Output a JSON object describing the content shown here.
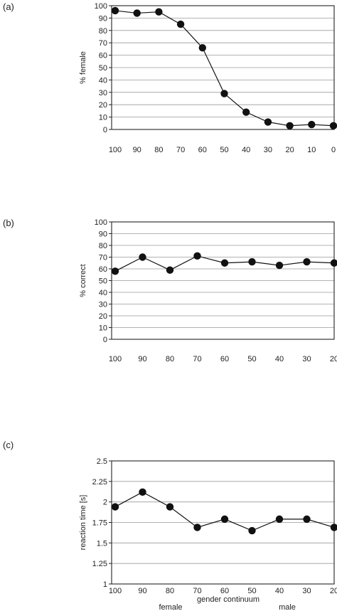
{
  "chart_data": [
    {
      "panel": "(a)",
      "type": "line",
      "ylabel": "% female",
      "xlabel": "",
      "ylim": [
        0,
        100
      ],
      "yticks": [
        "0",
        "10",
        "20",
        "30",
        "40",
        "50",
        "60",
        "70",
        "80",
        "90",
        "100"
      ],
      "x": [
        "100",
        "90",
        "80",
        "70",
        "60",
        "50",
        "40",
        "30",
        "20",
        "10",
        "0"
      ],
      "values": [
        96,
        94,
        95,
        85,
        66,
        29,
        14,
        6,
        3,
        4,
        3
      ],
      "grid": true
    },
    {
      "panel": "(b)",
      "type": "line",
      "ylabel": "% correct",
      "xlabel": "",
      "ylim": [
        0,
        100
      ],
      "yticks": [
        "0",
        "10",
        "20",
        "30",
        "40",
        "50",
        "60",
        "70",
        "80",
        "90",
        "100"
      ],
      "x": [
        "100",
        "90",
        "80",
        "70",
        "60",
        "50",
        "40",
        "30",
        "20"
      ],
      "values": [
        58,
        70,
        59,
        71,
        65,
        66,
        63,
        66,
        65
      ],
      "grid": true
    },
    {
      "panel": "(c)",
      "type": "line",
      "ylabel": "reaction time [s]",
      "xlabel": "gender continuum",
      "ylim": [
        1,
        2.5
      ],
      "yticks": [
        "1",
        "1.25",
        "1.5",
        "1.75",
        "2",
        "2.25",
        "2.5"
      ],
      "x": [
        "100",
        "90",
        "80",
        "70",
        "60",
        "50",
        "40",
        "30",
        "20"
      ],
      "values": [
        1.94,
        2.12,
        1.94,
        1.69,
        1.79,
        1.65,
        1.79,
        1.79,
        1.69
      ],
      "grid": true,
      "annotations": [
        "female",
        "male"
      ]
    }
  ]
}
